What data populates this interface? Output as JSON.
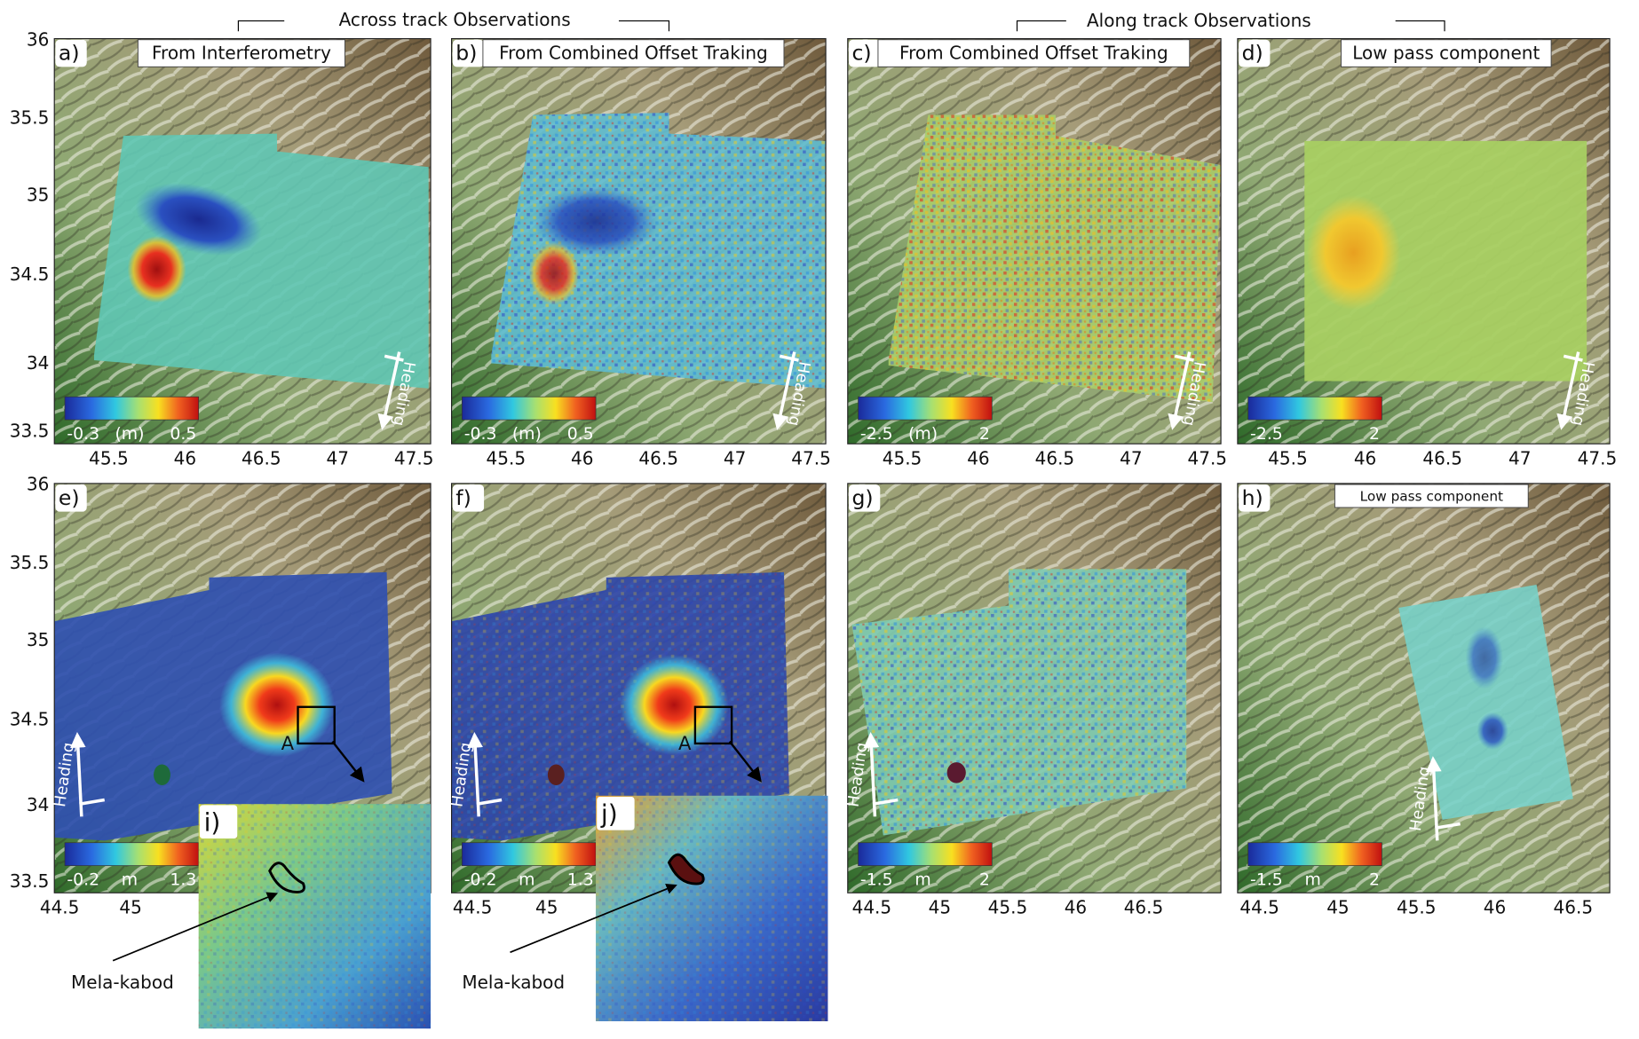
{
  "headers": [
    "Across track Observations",
    "Along track Observations"
  ],
  "lat_ticks_top": [
    "36",
    "35.5",
    "35",
    "34.5",
    "34",
    "33.5"
  ],
  "lat_ticks_bottom": [
    "36",
    "35.5",
    "35",
    "34.5",
    "34",
    "33.5"
  ],
  "panels": [
    {
      "letter": "a)",
      "title": "From Interferometry",
      "colorbar": [
        "-0.3",
        "(m)",
        "0.5"
      ],
      "heading": "Heading",
      "lon_ticks": [
        "45.5",
        "46",
        "46.5",
        "47",
        "47.5"
      ]
    },
    {
      "letter": "b)",
      "title": "From Combined Offset Traking",
      "colorbar": [
        "-0.3",
        "(m)",
        "0.5"
      ],
      "heading": "Heading",
      "lon_ticks": [
        "45.5",
        "46",
        "46.5",
        "47",
        "47.5"
      ]
    },
    {
      "letter": "c)",
      "title": "From Combined Offset Traking",
      "colorbar": [
        "-2.5",
        "(m)",
        "2"
      ],
      "heading": "Heading",
      "lon_ticks": [
        "45.5",
        "46",
        "46.5",
        "47",
        "47.5"
      ]
    },
    {
      "letter": "d)",
      "title": "Low pass component",
      "colorbar": [
        "-2.5",
        "2"
      ],
      "heading": "Heading",
      "lon_ticks": [
        "45.5",
        "46",
        "46.5",
        "47",
        "47.5"
      ]
    },
    {
      "letter": "e)",
      "colorbar": [
        "-0.2",
        "m",
        "1.3"
      ],
      "heading": "Heading",
      "point": "A",
      "lon_ticks": [
        "44.5",
        "45"
      ]
    },
    {
      "letter": "f)",
      "colorbar": [
        "-0.2",
        "m",
        "1.3"
      ],
      "heading": "Heading",
      "point": "A",
      "lon_ticks": [
        "44.5",
        "45"
      ]
    },
    {
      "letter": "g)",
      "colorbar": [
        "-1.5",
        "m",
        "2"
      ],
      "heading": "Heading",
      "lon_ticks": [
        "44.5",
        "45",
        "45.5",
        "46",
        "46.5"
      ]
    },
    {
      "letter": "h)",
      "title": "Low pass component",
      "colorbar": [
        "-1.5",
        "m",
        "2"
      ],
      "heading": "Heading",
      "lon_ticks": [
        "44.5",
        "45",
        "45.5",
        "46",
        "46.5"
      ]
    }
  ],
  "insets": [
    {
      "letter": "i)",
      "label": "Mela-kabod"
    },
    {
      "letter": "j)",
      "label": "Mela-kabod"
    }
  ]
}
